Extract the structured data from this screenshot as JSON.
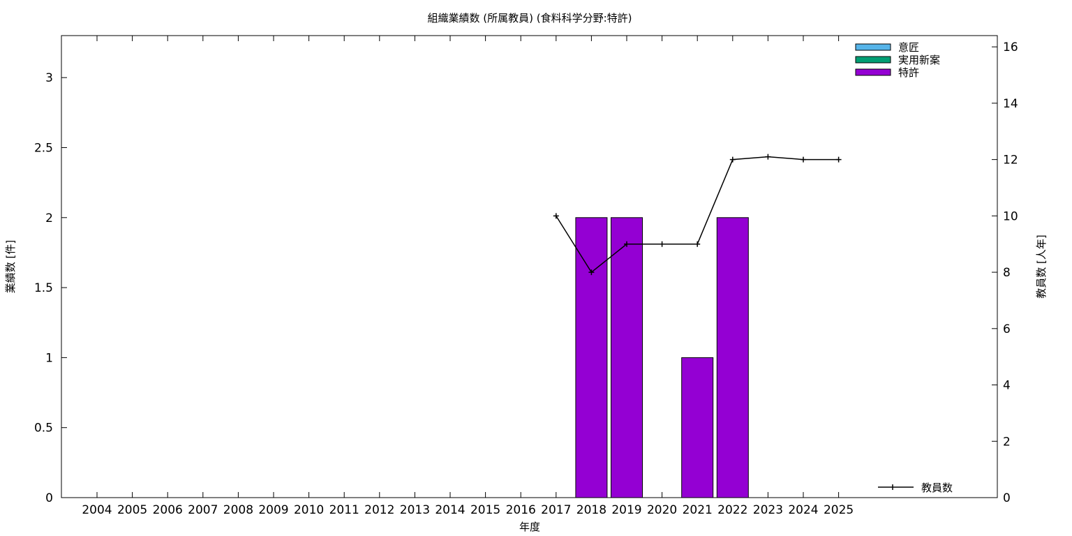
{
  "chart_data": {
    "type": "bar",
    "title": "組織業績数 (所属教員) (食料科学分野:特許)",
    "xlabel": "年度",
    "ylabel_left": "業績数 [件]",
    "ylabel_right": "教員数 [人年]",
    "categories": [
      "2004",
      "2005",
      "2006",
      "2007",
      "2008",
      "2009",
      "2010",
      "2011",
      "2012",
      "2013",
      "2014",
      "2015",
      "2016",
      "2017",
      "2018",
      "2019",
      "2020",
      "2021",
      "2022",
      "2023",
      "2024",
      "2025"
    ],
    "ylim_left": [
      0,
      3.3
    ],
    "yticks_left": [
      "0",
      "0.5",
      "1",
      "1.5",
      "2",
      "2.5",
      "3"
    ],
    "ylim_right": [
      0,
      16.4
    ],
    "yticks_right": [
      "0",
      "2",
      "4",
      "6",
      "8",
      "10",
      "12",
      "14",
      "16"
    ],
    "legend_position": "top-right",
    "series": [
      {
        "name": "意匠",
        "kind": "bar",
        "color": "#56b4e9",
        "values": [
          0,
          0,
          0,
          0,
          0,
          0,
          0,
          0,
          0,
          0,
          0,
          0,
          0,
          0,
          0,
          0,
          0,
          0,
          0,
          0,
          0,
          0
        ]
      },
      {
        "name": "実用新案",
        "kind": "bar",
        "color": "#009e73",
        "values": [
          0,
          0,
          0,
          0,
          0,
          0,
          0,
          0,
          0,
          0,
          0,
          0,
          0,
          0,
          0,
          0,
          0,
          0,
          0,
          0,
          0,
          0
        ]
      },
      {
        "name": "特許",
        "kind": "bar",
        "color": "#9400d3",
        "values": [
          0,
          0,
          0,
          0,
          0,
          0,
          0,
          0,
          0,
          0,
          0,
          0,
          0,
          0,
          2,
          2,
          0,
          1,
          2,
          0,
          0,
          0
        ]
      }
    ],
    "line_series": {
      "name": "教員数",
      "color": "#000000",
      "axis": "right",
      "x": [
        "2017",
        "2018",
        "2019",
        "2020",
        "2021",
        "2022",
        "2023",
        "2024",
        "2025"
      ],
      "values": [
        10,
        8,
        9,
        9,
        9,
        12,
        12.1,
        12,
        12
      ]
    }
  }
}
